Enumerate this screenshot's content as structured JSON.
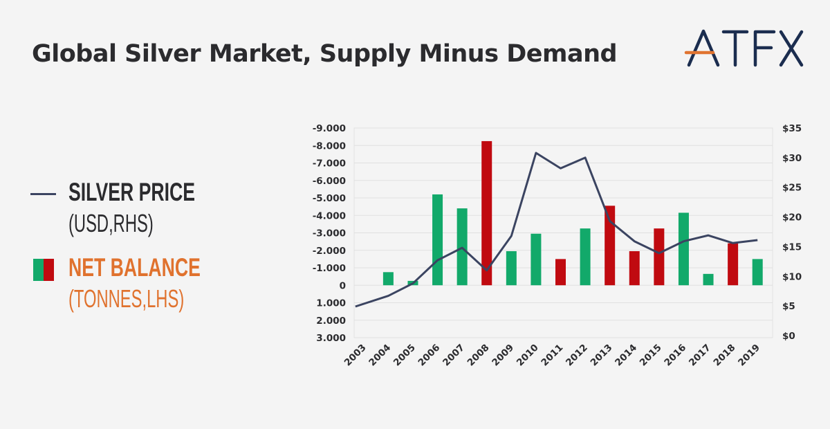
{
  "header": {
    "title": "Global Silver Market, Supply Minus Demand",
    "logo_text": "ATFX",
    "logo_colors": {
      "letters": "#1b2d4f",
      "accent": "#e07431"
    }
  },
  "legend": {
    "items": [
      {
        "title": "SILVER PRICE",
        "subtitle": "(USD,RHS)",
        "color": "#3b4461",
        "title_color": "#2b2b2e",
        "sub_color": "#2b2b2e"
      },
      {
        "title": "NET BALANCE",
        "subtitle": "(TONNES,LHS)",
        "colors": [
          "#12a96a",
          "#c00a10"
        ],
        "title_color": "#e0722e",
        "sub_color": "#e0722e"
      }
    ]
  },
  "chart_data": {
    "type": "bar+line",
    "title": "Global Silver Market, Supply Minus Demand",
    "categories": [
      "2003",
      "2004",
      "2005",
      "2006",
      "2007",
      "2008",
      "2009",
      "2010",
      "2011",
      "2012",
      "2013",
      "2014",
      "2015",
      "2016",
      "2017",
      "2018",
      "2019"
    ],
    "series": [
      {
        "name": "Net Balance (Tonnes, LHS)",
        "type": "bar",
        "axis": "left",
        "values": [
          0,
          -750,
          -250,
          -5200,
          -4400,
          -8250,
          -1950,
          -2950,
          -1500,
          -3250,
          -4550,
          -1950,
          -3250,
          -4150,
          -650,
          -2400,
          -1500
        ],
        "colors": [
          "#12a96a",
          "#12a96a",
          "#12a96a",
          "#12a96a",
          "#12a96a",
          "#c00a10",
          "#12a96a",
          "#12a96a",
          "#c00a10",
          "#12a96a",
          "#c00a10",
          "#c00a10",
          "#c00a10",
          "#12a96a",
          "#12a96a",
          "#c00a10",
          "#12a96a"
        ]
      },
      {
        "name": "Silver Price (USD, RHS)",
        "type": "line",
        "axis": "right",
        "color": "#3b4461",
        "values": [
          4.9,
          6.7,
          8.8,
          12.7,
          14.8,
          11.0,
          16.8,
          30.8,
          28.2,
          30.0,
          19.3,
          15.9,
          13.9,
          15.9,
          16.9,
          15.6,
          16.1
        ]
      }
    ],
    "left_axis": {
      "ticks": [
        "-9.000",
        "-8.000",
        "-7.000",
        "-6.000",
        "-5.000",
        "-4.000",
        "-3.000",
        "-2.000",
        "-1.000",
        "0",
        "1.000",
        "2.000",
        "3.000"
      ],
      "values": [
        -9000,
        -8000,
        -7000,
        -6000,
        -5000,
        -4000,
        -3000,
        -2000,
        -1000,
        0,
        1000,
        2000,
        3000
      ],
      "range": [
        -9000,
        3000
      ],
      "inverted": true
    },
    "right_axis": {
      "ticks": [
        "$35",
        "$30",
        "$25",
        "$20",
        "$15",
        "$10",
        "$5",
        "$0"
      ],
      "values": [
        35,
        30,
        25,
        20,
        15,
        10,
        5,
        0
      ],
      "range": [
        0,
        35
      ]
    },
    "xlabel": "",
    "ylabel_left": "Tonnes",
    "ylabel_right": "USD",
    "grid": true,
    "legend_position": "left"
  }
}
